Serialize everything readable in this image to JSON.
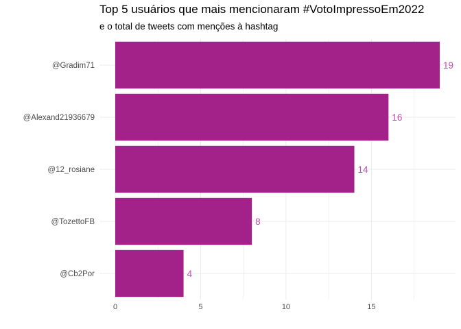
{
  "chart_data": {
    "type": "bar",
    "orientation": "horizontal",
    "title": "Top 5 usuários que mais mencionaram #VotoImpressoEm2022",
    "subtitle": "e o total de tweets com menções à hashtag",
    "categories": [
      "@Gradim71",
      "@Alexand21936679",
      "@12_rosiane",
      "@TozettoFB",
      "@Cb2Por"
    ],
    "values": [
      19,
      16,
      14,
      8,
      4
    ],
    "data_labels": [
      "19",
      "16",
      "14",
      "8",
      "4"
    ],
    "x_ticks": [
      "0",
      "5",
      "10",
      "15"
    ],
    "xlim": [
      0,
      19
    ],
    "grid": true,
    "bar_color": "#a2228a",
    "label_color": "#c94bb3",
    "grid_color": "#ebebeb"
  }
}
